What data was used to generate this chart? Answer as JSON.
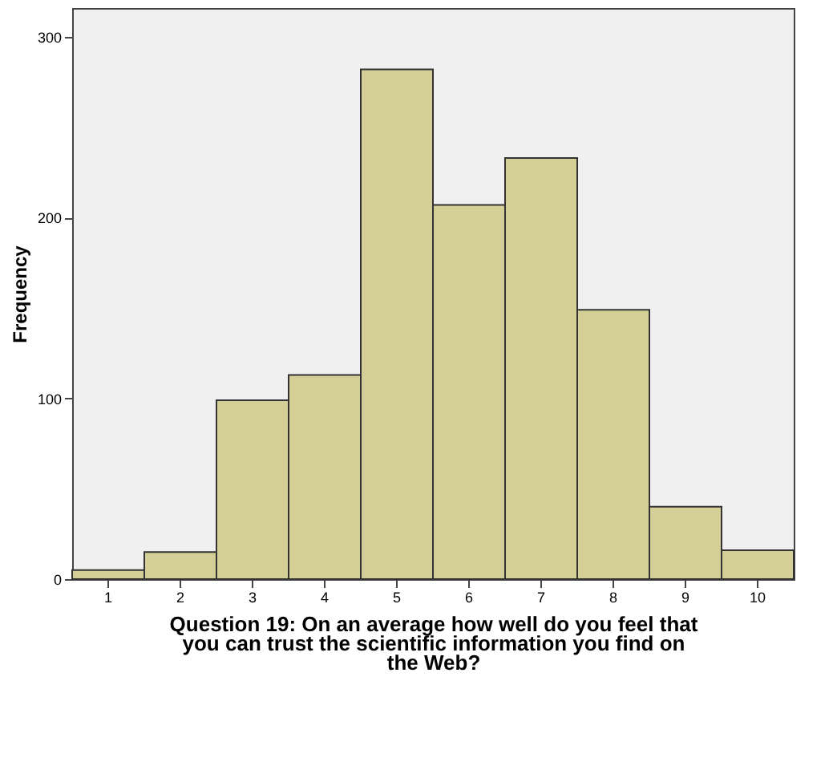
{
  "chart_data": {
    "type": "bar",
    "xlabel": "Question 19: On an average how well do you feel that you can trust the scientific information you find on the Web?",
    "ylabel": "Frequency",
    "categories": [
      "1",
      "2",
      "3",
      "4",
      "5",
      "6",
      "7",
      "8",
      "9",
      "10"
    ],
    "values": [
      5,
      15,
      99,
      113,
      282,
      207,
      233,
      149,
      40,
      16
    ],
    "color": "#d3cf96",
    "ylim": [
      0,
      316
    ],
    "yticks": [
      0,
      100,
      200,
      300
    ],
    "grid": false
  }
}
